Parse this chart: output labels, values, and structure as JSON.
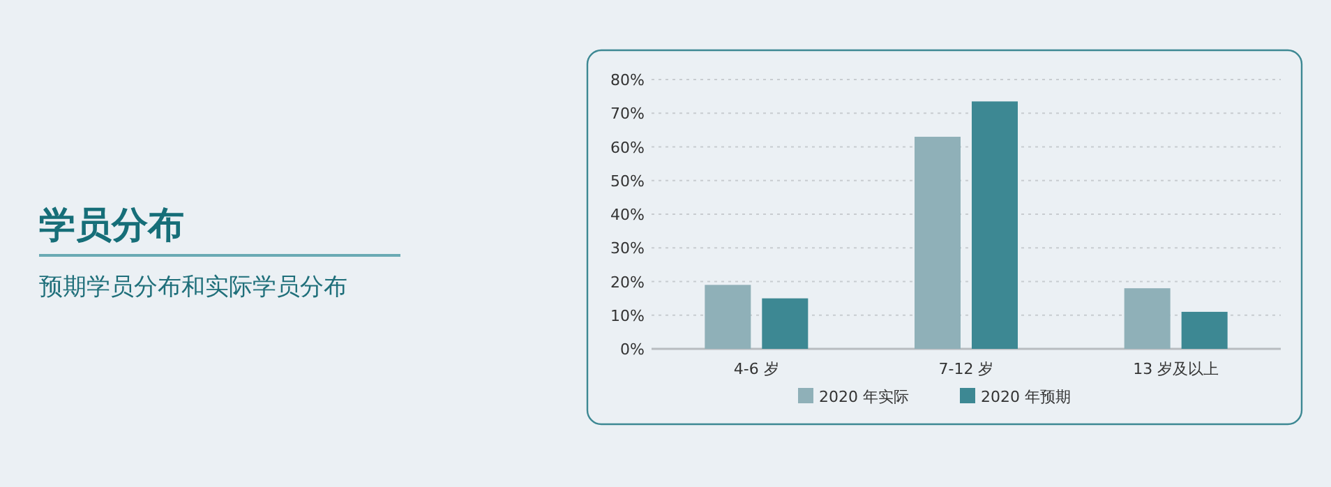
{
  "chart_data": {
    "type": "bar",
    "title": "学员分布",
    "subtitle": "预期学员分布和实际学员分布",
    "categories": [
      "4-6 岁",
      "7-12 岁",
      "13 岁及以上"
    ],
    "series": [
      {
        "name": "2020 年实际",
        "color": "#8fb0b8",
        "values": [
          19,
          63,
          18
        ]
      },
      {
        "name": "2020 年预期",
        "color": "#3d8893",
        "values": [
          15,
          73.5,
          11
        ]
      }
    ],
    "ylim": [
      0,
      80
    ],
    "yticks": [
      {
        "value": 0,
        "label": "0%"
      },
      {
        "value": 10,
        "label": "10%"
      },
      {
        "value": 20,
        "label": "20%"
      },
      {
        "value": 30,
        "label": "30%"
      },
      {
        "value": 40,
        "label": "40%"
      },
      {
        "value": 50,
        "label": "50%"
      },
      {
        "value": 60,
        "label": "60%"
      },
      {
        "value": 70,
        "label": "70%"
      },
      {
        "value": 80,
        "label": "80%"
      }
    ],
    "grid": "y",
    "legend": "bottom"
  }
}
